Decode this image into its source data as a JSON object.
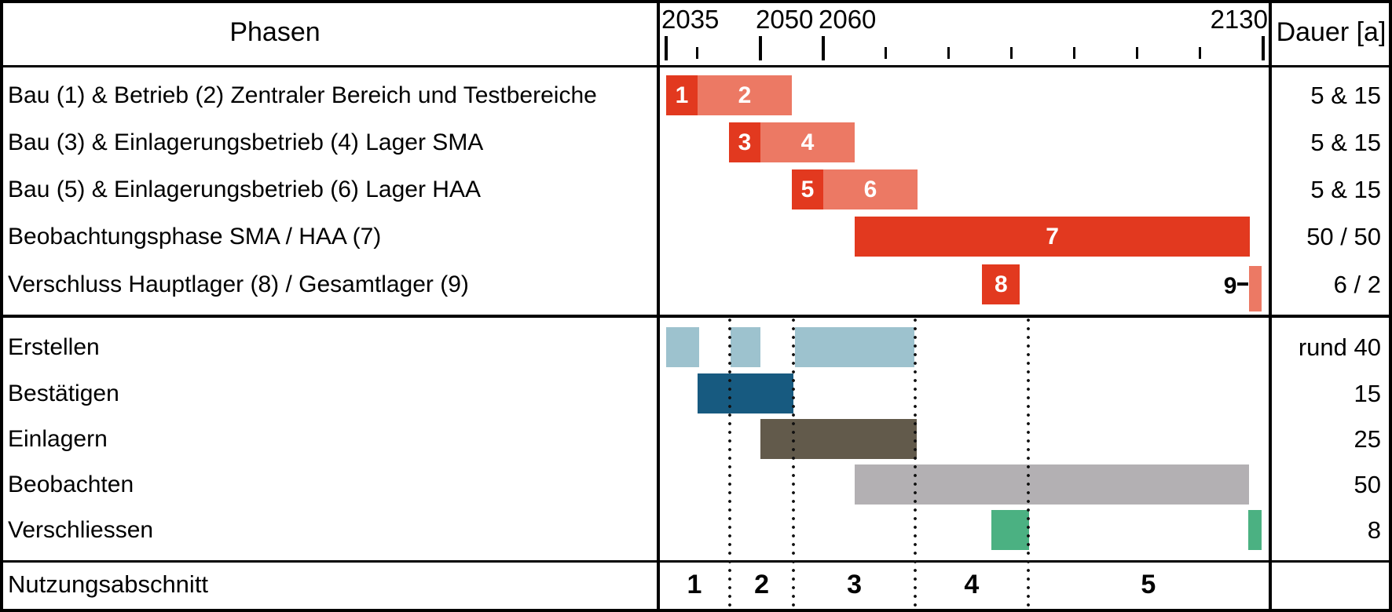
{
  "header": {
    "phases": "Phasen",
    "duration": "Dauer [a]"
  },
  "footer": {
    "label": "Nutzungsabschnitt",
    "section_numbers": [
      "1",
      "2",
      "3",
      "4",
      "5"
    ]
  },
  "colors": {
    "red_dark": "#e2391f",
    "red_light": "#ec7964",
    "blue_light": "#9dc2ce",
    "blue_dark": "#175a80",
    "taupe": "#625a4b",
    "gray": "#b3b0b3",
    "green": "#4bb182",
    "line": "#000000"
  },
  "chart_data": {
    "type": "bar",
    "subtype": "gantt-project-timeline",
    "title": "",
    "x_axis": {
      "unit": "year",
      "range": [
        2033.75,
        2131.75
      ],
      "major_ticks": [
        2035,
        2050,
        2060,
        2130
      ],
      "minor_ticks": [
        2040,
        2070,
        2080,
        2090,
        2100,
        2110,
        2120
      ],
      "labels": [
        {
          "text": "2035",
          "year": 2035,
          "align": "left"
        },
        {
          "text": "2050",
          "year": 2050,
          "align": "left"
        },
        {
          "text": "2060",
          "year": 2060,
          "align": "left"
        },
        {
          "text": "2130",
          "year": 2130,
          "align": "right"
        }
      ]
    },
    "phase_rows": [
      {
        "label": "Bau (1) & Betrieb (2) Zentraler Bereich und Testbereiche",
        "duration": "5 & 15",
        "bars": [
          {
            "num": "1",
            "start": 2035,
            "end": 2040,
            "color": "red_dark"
          },
          {
            "num": "2",
            "start": 2040,
            "end": 2055,
            "color": "red_light"
          }
        ]
      },
      {
        "label": "Bau (3) & Einlagerungsbetrieb (4) Lager SMA",
        "duration": "5 & 15",
        "bars": [
          {
            "num": "3",
            "start": 2045,
            "end": 2050,
            "color": "red_dark"
          },
          {
            "num": "4",
            "start": 2050,
            "end": 2065,
            "color": "red_light"
          }
        ]
      },
      {
        "label": "Bau (5) & Einlagerungsbetrieb (6) Lager HAA",
        "duration": "5 & 15",
        "bars": [
          {
            "num": "5",
            "start": 2055,
            "end": 2060,
            "color": "red_dark"
          },
          {
            "num": "6",
            "start": 2060,
            "end": 2075,
            "color": "red_light"
          }
        ]
      },
      {
        "label": "Beobachtungsphase SMA / HAA (7)",
        "duration": "50 / 50",
        "bars": [
          {
            "num": "7",
            "start": 2065,
            "end": 2127.9,
            "color": "red_dark"
          }
        ]
      },
      {
        "label": "Verschluss Hauptlager (8) / Gesamtlager (9)",
        "duration": "6 / 2",
        "bars": [
          {
            "num": "8",
            "start": 2085.3,
            "end": 2091.3,
            "color": "red_dark"
          },
          {
            "num": "",
            "start": 2127.8,
            "end": 2129.8,
            "color": "red_light",
            "tall": true,
            "callout": "9"
          }
        ]
      }
    ],
    "activity_rows": [
      {
        "label": "Erstellen",
        "duration": "rund 40",
        "color": "blue_light",
        "bars": [
          [
            2035,
            2040.3
          ],
          [
            2045.2,
            2050
          ],
          [
            2055.5,
            2074.5
          ]
        ]
      },
      {
        "label": "Bestätigen",
        "duration": "15",
        "color": "blue_dark",
        "bars": [
          [
            2040,
            2055.2
          ]
        ]
      },
      {
        "label": "Einlagern",
        "duration": "25",
        "color": "taupe",
        "bars": [
          [
            2050,
            2074.9
          ]
        ]
      },
      {
        "label": "Beobachten",
        "duration": "50",
        "color": "gray",
        "bars": [
          [
            2065,
            2127.8
          ]
        ]
      },
      {
        "label": "Verschliessen",
        "duration": "8",
        "color": "green",
        "bars": [
          [
            2086.8,
            2092.8
          ],
          [
            2127.6,
            2129.8
          ]
        ]
      }
    ],
    "section_boundaries_years": [
      2045.1,
      2055.3,
      2074.6,
      2092.6
    ]
  }
}
